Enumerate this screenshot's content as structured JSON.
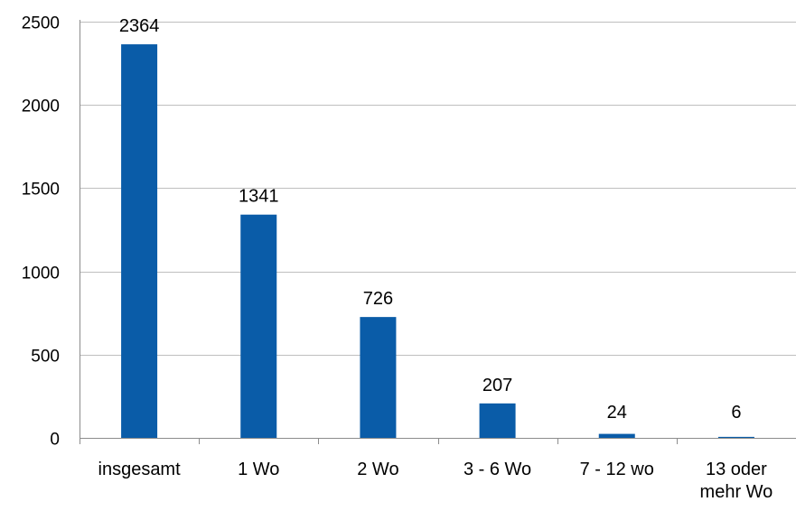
{
  "chart_data": {
    "type": "bar",
    "categories": [
      [
        "insgesamt"
      ],
      [
        "1 Wo"
      ],
      [
        "2 Wo"
      ],
      [
        "3 - 6 Wo"
      ],
      [
        "7 - 12 wo"
      ],
      [
        "13 oder",
        "mehr Wo"
      ]
    ],
    "values": [
      2364,
      1341,
      726,
      207,
      24,
      6
    ],
    "data_labels": [
      "2364",
      "1341",
      "726",
      "207",
      "24",
      "6"
    ],
    "ylim": [
      0,
      2500
    ],
    "yticks": [
      0,
      500,
      1000,
      1500,
      2000,
      2500
    ],
    "ytick_labels": [
      "0",
      "500",
      "1000",
      "1500",
      "2000",
      "2500"
    ],
    "title": "",
    "xlabel": "",
    "ylabel": "",
    "grid": true,
    "legend": "none",
    "colors": {
      "bar": "#0a5ca8",
      "grid": "#bfbfbf",
      "axis": "#8c8c8c"
    }
  }
}
